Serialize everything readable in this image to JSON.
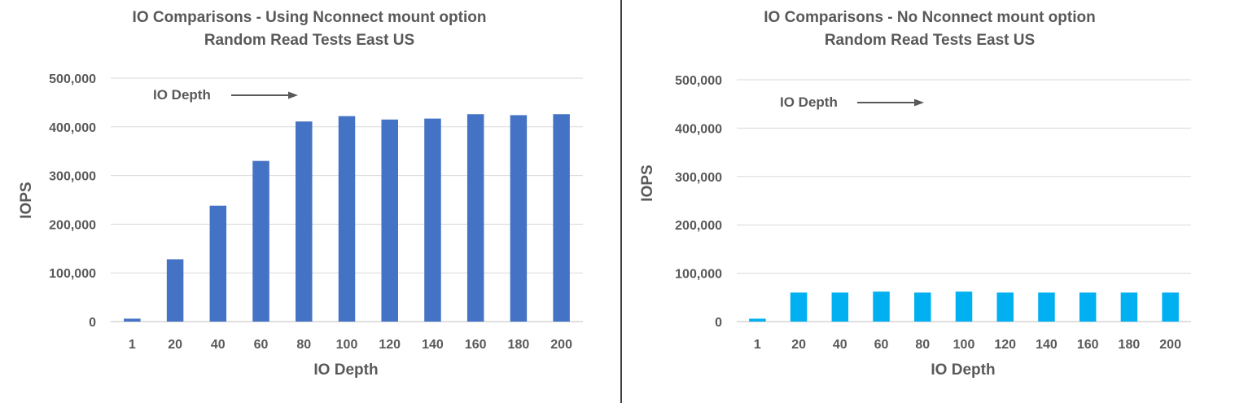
{
  "chart_data": [
    {
      "type": "bar",
      "title_lines": [
        "IO Comparisons - Using Nconnect mount option",
        "Random Read Tests East US"
      ],
      "xlabel": "IO Depth",
      "ylabel": "IOPS",
      "ylim": [
        0,
        500000
      ],
      "yticks": [
        "0",
        "100,000",
        "200,000",
        "300,000",
        "400,000",
        "500,000"
      ],
      "grid": true,
      "annotation": "IO Depth",
      "categories": [
        "1",
        "20",
        "40",
        "60",
        "80",
        "100",
        "120",
        "140",
        "160",
        "180",
        "200"
      ],
      "series": [
        {
          "values": [
            6000,
            128000,
            238000,
            330000,
            411000,
            422000,
            415000,
            417000,
            426000,
            424000,
            426000
          ],
          "color": "#4472C4"
        }
      ]
    },
    {
      "type": "bar",
      "title_lines": [
        "IO Comparisons - No Nconnect mount option",
        "Random Read Tests East US"
      ],
      "xlabel": "IO Depth",
      "ylabel": "IOPS",
      "ylim": [
        0,
        500000
      ],
      "yticks": [
        "0",
        "100,000",
        "200,000",
        "300,000",
        "400,000",
        "500,000"
      ],
      "grid": true,
      "annotation": "IO Depth",
      "categories": [
        "1",
        "20",
        "40",
        "60",
        "80",
        "100",
        "120",
        "140",
        "160",
        "180",
        "200"
      ],
      "series": [
        {
          "values": [
            6000,
            60000,
            60000,
            62000,
            60000,
            62000,
            60000,
            60000,
            60000,
            60000,
            60000
          ],
          "color": "#00B0F0"
        }
      ]
    }
  ],
  "colors": {
    "divider": "#000000",
    "grid": "#d9d9d9",
    "text": "#595959",
    "arrow": "#595959"
  }
}
